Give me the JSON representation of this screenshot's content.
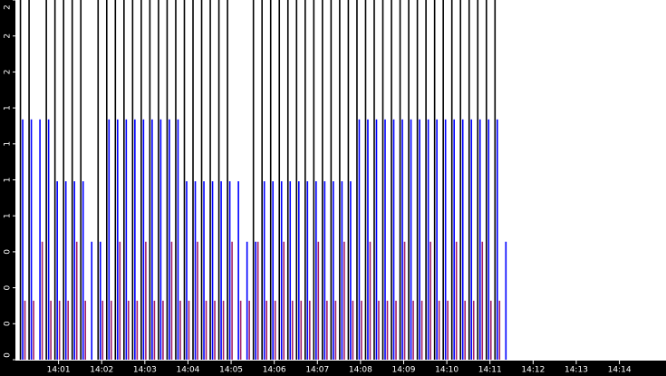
{
  "chart_data": {
    "type": "bar",
    "x": [
      0.1,
      0.3,
      0.5,
      0.7,
      0.9,
      1.1,
      1.3,
      1.5,
      1.7,
      1.9,
      2.1,
      2.3,
      2.5,
      2.7,
      2.9,
      3.1,
      3.3,
      3.5,
      3.7,
      3.9,
      4.1,
      4.3,
      4.5,
      4.7,
      4.9,
      5.1,
      5.3,
      5.5,
      5.7,
      5.9,
      6.1,
      6.3,
      6.5,
      6.7,
      6.9,
      7.1,
      7.3,
      7.5,
      7.7,
      7.9,
      8.1,
      8.3,
      8.5,
      8.7,
      8.9,
      9.1,
      9.3,
      9.5,
      9.7,
      9.9,
      10.1,
      10.3,
      10.5,
      10.7,
      10.9,
      11.1,
      11.3
    ],
    "series": [
      {
        "color": "#000000",
        "values": [
          2.5,
          2.5,
          null,
          2.5,
          2.5,
          2.5,
          2.5,
          2.5,
          null,
          2.5,
          2.5,
          2.5,
          2.5,
          2.5,
          2.5,
          2.5,
          2.5,
          2.5,
          2.5,
          2.5,
          2.5,
          2.5,
          2.5,
          2.5,
          2.5,
          null,
          null,
          2.5,
          2.5,
          2.5,
          2.5,
          2.5,
          2.5,
          2.5,
          2.5,
          2.5,
          2.5,
          2.5,
          2.5,
          2.5,
          2.5,
          2.5,
          2.5,
          2.5,
          2.5,
          2.5,
          2.5,
          2.5,
          2.5,
          2.5,
          2.5,
          2.5,
          2.5,
          2.5,
          2.5,
          2.5,
          null
        ]
      },
      {
        "color": "#0000ff",
        "values": [
          1.67,
          1.67,
          1.67,
          1.67,
          1.24,
          1.24,
          1.24,
          1.24,
          0.82,
          0.82,
          1.67,
          1.67,
          1.67,
          1.67,
          1.67,
          1.67,
          1.67,
          1.67,
          1.67,
          1.24,
          1.24,
          1.24,
          1.24,
          1.24,
          1.24,
          1.24,
          0.82,
          0.82,
          1.24,
          1.24,
          1.24,
          1.24,
          1.24,
          1.24,
          1.24,
          1.24,
          1.24,
          1.24,
          1.24,
          1.67,
          1.67,
          1.67,
          1.67,
          1.67,
          1.67,
          1.67,
          1.67,
          1.67,
          1.67,
          1.67,
          1.67,
          1.67,
          1.67,
          1.67,
          1.67,
          1.67,
          0.82
        ]
      },
      {
        "color": "#a0206a",
        "values": [
          0.41,
          0.41,
          0.82,
          0.41,
          0.41,
          0.41,
          0.82,
          0.41,
          null,
          0.41,
          0.41,
          0.82,
          0.41,
          0.41,
          0.82,
          0.41,
          0.41,
          0.82,
          0.41,
          0.41,
          0.82,
          0.41,
          0.41,
          0.41,
          0.82,
          0.41,
          0.41,
          0.82,
          0.41,
          0.41,
          0.82,
          0.41,
          0.41,
          0.41,
          0.82,
          0.41,
          0.41,
          0.82,
          0.41,
          0.41,
          0.82,
          0.41,
          0.41,
          0.41,
          0.82,
          0.41,
          0.41,
          0.82,
          0.41,
          0.41,
          0.82,
          0.41,
          0.41,
          0.82,
          0.41,
          0.41,
          null
        ]
      }
    ],
    "xlim": [
      0,
      15.08
    ],
    "xticks": [
      {
        "value": 1,
        "label": "14:01"
      },
      {
        "value": 2,
        "label": "14:02"
      },
      {
        "value": 3,
        "label": "14:03"
      },
      {
        "value": 4,
        "label": "14:04"
      },
      {
        "value": 5,
        "label": "14:05"
      },
      {
        "value": 6,
        "label": "14:06"
      },
      {
        "value": 7,
        "label": "14:07"
      },
      {
        "value": 8,
        "label": "14:08"
      },
      {
        "value": 9,
        "label": "14:09"
      },
      {
        "value": 10,
        "label": "14:10"
      },
      {
        "value": 11,
        "label": "14:11"
      },
      {
        "value": 12,
        "label": "14:12"
      },
      {
        "value": 13,
        "label": "14:13"
      },
      {
        "value": 14,
        "label": "14:14"
      }
    ],
    "ylim": [
      0,
      2.5
    ],
    "yticks": [
      {
        "value": 0,
        "label": "0"
      },
      {
        "value": 0.25,
        "label": "0"
      },
      {
        "value": 0.5,
        "label": "0"
      },
      {
        "value": 0.75,
        "label": "0"
      },
      {
        "value": 1,
        "label": "1"
      },
      {
        "value": 1.25,
        "label": "1"
      },
      {
        "value": 1.5,
        "label": "1"
      },
      {
        "value": 1.75,
        "label": "1"
      },
      {
        "value": 2,
        "label": "2"
      },
      {
        "value": 2.25,
        "label": "2"
      },
      {
        "value": 2.5,
        "label": "2"
      }
    ]
  }
}
